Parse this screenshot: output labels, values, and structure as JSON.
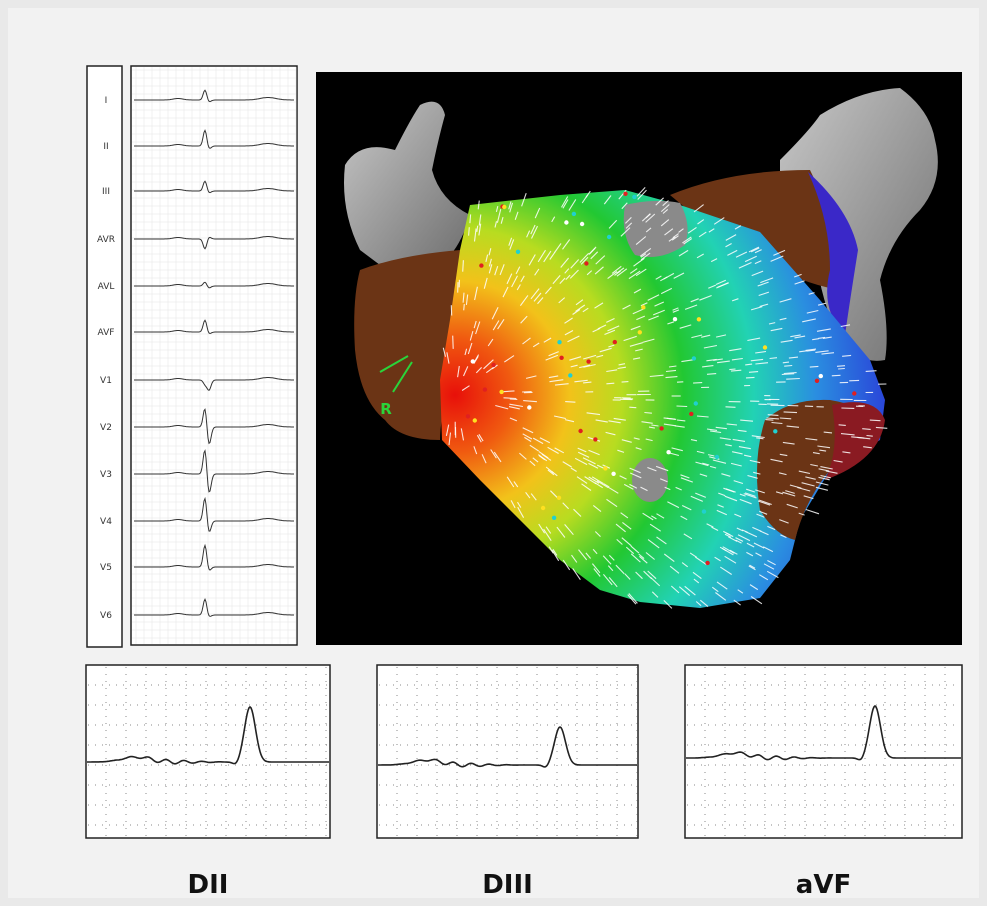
{
  "leads": [
    "I",
    "II",
    "III",
    "AVR",
    "AVL",
    "AVF",
    "V1",
    "V2",
    "V3",
    "V4",
    "V5",
    "V6"
  ],
  "map": {
    "marker": "R"
  },
  "strips": [
    "DII",
    "DIII",
    "aVF"
  ]
}
